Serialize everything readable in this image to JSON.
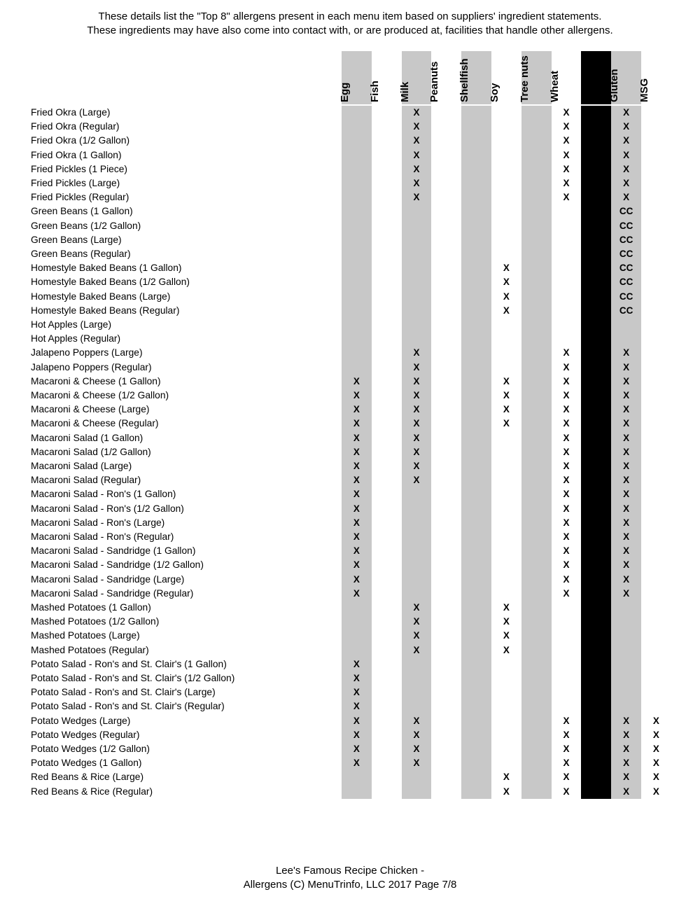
{
  "header": {
    "line1": "These details list the \"Top 8\" allergens present in each menu item based on suppliers' ingredient statements.",
    "line2": "These ingredients may have also come into contact with, or are produced at, facilities that handle other allergens."
  },
  "footer": {
    "line1": "Lee's Famous Recipe Chicken -",
    "line2": "Allergens (C) MenuTrinfo, LLC 2017 Page 7/8"
  },
  "colors": {
    "column_gray": "#c8c8c8",
    "redacted_black": "#000000"
  },
  "table": {
    "columns": [
      {
        "label": "Egg",
        "shade": "gray"
      },
      {
        "label": "Fish",
        "shade": "white"
      },
      {
        "label": "Milk",
        "shade": "gray"
      },
      {
        "label": "Peanuts",
        "shade": "white"
      },
      {
        "label": "Shellfish",
        "shade": "gray"
      },
      {
        "label": "Soy",
        "shade": "white"
      },
      {
        "label": "Tree nuts",
        "shade": "gray"
      },
      {
        "label": "Wheat",
        "shade": "white"
      },
      {
        "label": "",
        "shade": "black"
      },
      {
        "label": "Gluten",
        "shade": "gray"
      },
      {
        "label": "MSG",
        "shade": "white"
      }
    ],
    "rows": [
      {
        "item": "Fried Okra (Large)",
        "marks": {
          "Milk": "X",
          "Wheat": "X",
          "Gluten": "X"
        }
      },
      {
        "item": "Fried Okra (Regular)",
        "marks": {
          "Milk": "X",
          "Wheat": "X",
          "Gluten": "X"
        }
      },
      {
        "item": "Fried Okra (1/2 Gallon)",
        "marks": {
          "Milk": "X",
          "Wheat": "X",
          "Gluten": "X"
        }
      },
      {
        "item": "Fried Okra (1 Gallon)",
        "marks": {
          "Milk": "X",
          "Wheat": "X",
          "Gluten": "X"
        }
      },
      {
        "item": "Fried Pickles (1 Piece)",
        "marks": {
          "Milk": "X",
          "Wheat": "X",
          "Gluten": "X"
        }
      },
      {
        "item": "Fried Pickles (Large)",
        "marks": {
          "Milk": "X",
          "Wheat": "X",
          "Gluten": "X"
        }
      },
      {
        "item": "Fried Pickles (Regular)",
        "marks": {
          "Milk": "X",
          "Wheat": "X",
          "Gluten": "X"
        }
      },
      {
        "item": "Green Beans (1 Gallon)",
        "marks": {
          "Gluten": "CC"
        }
      },
      {
        "item": "Green Beans (1/2 Gallon)",
        "marks": {
          "Gluten": "CC"
        }
      },
      {
        "item": "Green Beans (Large)",
        "marks": {
          "Gluten": "CC"
        }
      },
      {
        "item": "Green Beans (Regular)",
        "marks": {
          "Gluten": "CC"
        }
      },
      {
        "item": "Homestyle Baked Beans (1 Gallon)",
        "marks": {
          "Soy": "X",
          "Gluten": "CC"
        }
      },
      {
        "item": "Homestyle Baked Beans (1/2 Gallon)",
        "marks": {
          "Soy": "X",
          "Gluten": "CC"
        }
      },
      {
        "item": "Homestyle Baked Beans (Large)",
        "marks": {
          "Soy": "X",
          "Gluten": "CC"
        }
      },
      {
        "item": "Homestyle Baked Beans (Regular)",
        "marks": {
          "Soy": "X",
          "Gluten": "CC"
        }
      },
      {
        "item": "Hot Apples (Large)",
        "marks": {}
      },
      {
        "item": "Hot Apples (Regular)",
        "marks": {}
      },
      {
        "item": "Jalapeno Poppers (Large)",
        "marks": {
          "Milk": "X",
          "Wheat": "X",
          "Gluten": "X"
        }
      },
      {
        "item": "Jalapeno Poppers (Regular)",
        "marks": {
          "Milk": "X",
          "Wheat": "X",
          "Gluten": "X"
        }
      },
      {
        "item": "Macaroni & Cheese (1 Gallon)",
        "marks": {
          "Egg": "X",
          "Milk": "X",
          "Soy": "X",
          "Wheat": "X",
          "Gluten": "X"
        }
      },
      {
        "item": "Macaroni & Cheese (1/2 Gallon)",
        "marks": {
          "Egg": "X",
          "Milk": "X",
          "Soy": "X",
          "Wheat": "X",
          "Gluten": "X"
        }
      },
      {
        "item": "Macaroni & Cheese (Large)",
        "marks": {
          "Egg": "X",
          "Milk": "X",
          "Soy": "X",
          "Wheat": "X",
          "Gluten": "X"
        }
      },
      {
        "item": "Macaroni & Cheese (Regular)",
        "marks": {
          "Egg": "X",
          "Milk": "X",
          "Soy": "X",
          "Wheat": "X",
          "Gluten": "X"
        }
      },
      {
        "item": "Macaroni Salad (1 Gallon)",
        "marks": {
          "Egg": "X",
          "Milk": "X",
          "Wheat": "X",
          "Gluten": "X"
        }
      },
      {
        "item": "Macaroni Salad (1/2 Gallon)",
        "marks": {
          "Egg": "X",
          "Milk": "X",
          "Wheat": "X",
          "Gluten": "X"
        }
      },
      {
        "item": "Macaroni Salad (Large)",
        "marks": {
          "Egg": "X",
          "Milk": "X",
          "Wheat": "X",
          "Gluten": "X"
        }
      },
      {
        "item": "Macaroni Salad (Regular)",
        "marks": {
          "Egg": "X",
          "Milk": "X",
          "Wheat": "X",
          "Gluten": "X"
        }
      },
      {
        "item": "Macaroni Salad - Ron's (1 Gallon)",
        "marks": {
          "Egg": "X",
          "Wheat": "X",
          "Gluten": "X"
        }
      },
      {
        "item": "Macaroni Salad - Ron's (1/2 Gallon)",
        "marks": {
          "Egg": "X",
          "Wheat": "X",
          "Gluten": "X"
        }
      },
      {
        "item": "Macaroni Salad - Ron's (Large)",
        "marks": {
          "Egg": "X",
          "Wheat": "X",
          "Gluten": "X"
        }
      },
      {
        "item": "Macaroni Salad - Ron's (Regular)",
        "marks": {
          "Egg": "X",
          "Wheat": "X",
          "Gluten": "X"
        }
      },
      {
        "item": "Macaroni Salad - Sandridge (1 Gallon)",
        "marks": {
          "Egg": "X",
          "Wheat": "X",
          "Gluten": "X"
        }
      },
      {
        "item": "Macaroni Salad - Sandridge (1/2 Gallon)",
        "marks": {
          "Egg": "X",
          "Wheat": "X",
          "Gluten": "X"
        }
      },
      {
        "item": "Macaroni Salad - Sandridge (Large)",
        "marks": {
          "Egg": "X",
          "Wheat": "X",
          "Gluten": "X"
        }
      },
      {
        "item": "Macaroni Salad - Sandridge (Regular)",
        "marks": {
          "Egg": "X",
          "Wheat": "X",
          "Gluten": "X"
        }
      },
      {
        "item": "Mashed Potatoes (1 Gallon)",
        "marks": {
          "Milk": "X",
          "Soy": "X"
        }
      },
      {
        "item": "Mashed Potatoes (1/2 Gallon)",
        "marks": {
          "Milk": "X",
          "Soy": "X"
        }
      },
      {
        "item": "Mashed Potatoes (Large)",
        "marks": {
          "Milk": "X",
          "Soy": "X"
        }
      },
      {
        "item": "Mashed Potatoes (Regular)",
        "marks": {
          "Milk": "X",
          "Soy": "X"
        }
      },
      {
        "item": "Potato Salad - Ron's and St. Clair's (1 Gallon)",
        "marks": {
          "Egg": "X"
        }
      },
      {
        "item": "Potato Salad - Ron's and St. Clair's (1/2 Gallon)",
        "marks": {
          "Egg": "X"
        }
      },
      {
        "item": "Potato Salad - Ron's and St. Clair's (Large)",
        "marks": {
          "Egg": "X"
        }
      },
      {
        "item": "Potato Salad - Ron's and St. Clair's (Regular)",
        "marks": {
          "Egg": "X"
        }
      },
      {
        "item": "Potato Wedges (Large)",
        "marks": {
          "Egg": "X",
          "Milk": "X",
          "Wheat": "X",
          "Gluten": "X",
          "MSG": "X"
        }
      },
      {
        "item": "Potato Wedges (Regular)",
        "marks": {
          "Egg": "X",
          "Milk": "X",
          "Wheat": "X",
          "Gluten": "X",
          "MSG": "X"
        }
      },
      {
        "item": "Potato Wedges (1/2 Gallon)",
        "marks": {
          "Egg": "X",
          "Milk": "X",
          "Wheat": "X",
          "Gluten": "X",
          "MSG": "X"
        }
      },
      {
        "item": "Potato Wedges (1 Gallon)",
        "marks": {
          "Egg": "X",
          "Milk": "X",
          "Wheat": "X",
          "Gluten": "X",
          "MSG": "X"
        }
      },
      {
        "item": "Red Beans & Rice (Large)",
        "marks": {
          "Soy": "X",
          "Wheat": "X",
          "Gluten": "X",
          "MSG": "X"
        }
      },
      {
        "item": "Red Beans & Rice (Regular)",
        "marks": {
          "Soy": "X",
          "Wheat": "X",
          "Gluten": "X",
          "MSG": "X"
        }
      }
    ]
  }
}
